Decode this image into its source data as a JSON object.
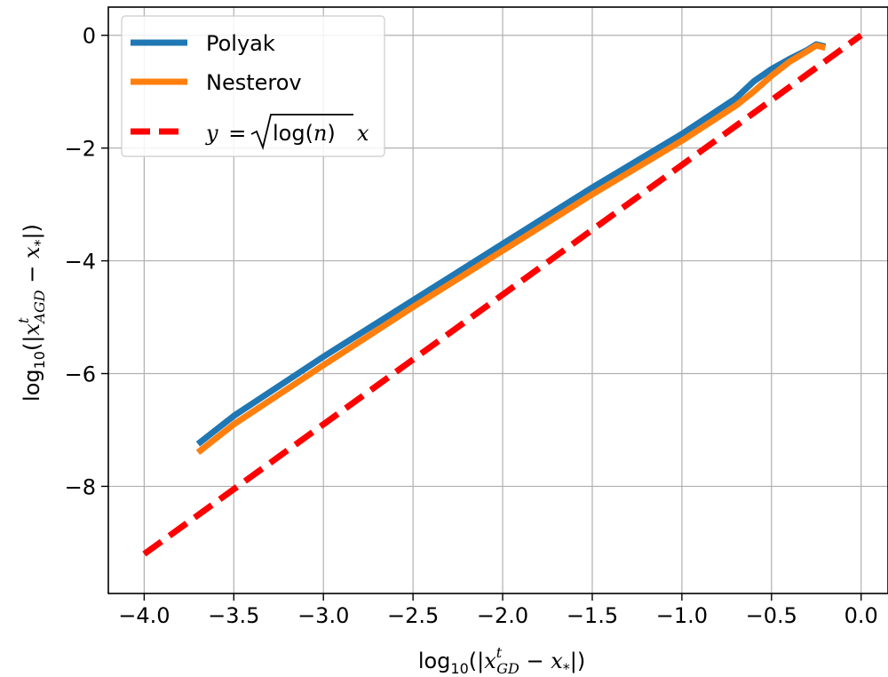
{
  "chart_data": {
    "type": "line",
    "xlabel": "log10(|x^t_GD − x*|)",
    "ylabel": "log10(|x^t_AGD − x*|)",
    "xlim": [
      -4.2,
      0.15
    ],
    "ylim": [
      -9.9,
      0.5
    ],
    "xticks": [
      -4.0,
      -3.5,
      -3.0,
      -2.5,
      -2.0,
      -1.5,
      -1.0,
      -0.5,
      0.0
    ],
    "yticks": [
      0,
      -2,
      -4,
      -6,
      -8
    ],
    "xtick_labels": [
      "−4.0",
      "−3.5",
      "−3.0",
      "−2.5",
      "−2.0",
      "−1.5",
      "−1.0",
      "−0.5",
      "0.0"
    ],
    "ytick_labels": [
      "0",
      "−2",
      "−4",
      "−6",
      "−8"
    ],
    "grid": true,
    "legend_position": "top-left",
    "series": [
      {
        "name": "Polyak",
        "color": "#1f77b4",
        "style": "solid",
        "x": [
          -3.7,
          -3.5,
          -3.0,
          -2.5,
          -2.0,
          -1.5,
          -1.0,
          -0.7,
          -0.6,
          -0.5,
          -0.4,
          -0.3,
          -0.25,
          -0.2
        ],
        "y": [
          -7.25,
          -6.75,
          -5.7,
          -4.7,
          -3.7,
          -2.7,
          -1.75,
          -1.12,
          -0.82,
          -0.6,
          -0.42,
          -0.26,
          -0.16,
          -0.2
        ]
      },
      {
        "name": "Nesterov",
        "color": "#ff7f0e",
        "style": "solid",
        "x": [
          -3.7,
          -3.5,
          -3.0,
          -2.5,
          -2.0,
          -1.5,
          -1.0,
          -0.7,
          -0.6,
          -0.5,
          -0.4,
          -0.3,
          -0.25,
          -0.2
        ],
        "y": [
          -7.4,
          -6.9,
          -5.85,
          -4.82,
          -3.82,
          -2.82,
          -1.87,
          -1.25,
          -1.0,
          -0.72,
          -0.47,
          -0.28,
          -0.18,
          -0.22
        ]
      },
      {
        "name": "y = √log(n) x",
        "color": "#ff0000",
        "style": "dashed",
        "x": [
          -4.0,
          0.0
        ],
        "y": [
          -9.2,
          0.0
        ]
      }
    ],
    "legend": {
      "polyak_label": "Polyak",
      "nesterov_label": "Nesterov",
      "line_label_y": "y",
      "line_label_eq": "=",
      "line_label_log": "log(",
      "line_label_n": "n",
      "line_label_close": ")",
      "line_label_x": "x"
    },
    "axis_text": {
      "xlabel_log": "log",
      "xlabel_sub": "10",
      "xlabel_open": "(|",
      "xlabel_var": "x",
      "xlabel_sup": "t",
      "xlabel_varsub": "GD",
      "xlabel_minus": " − ",
      "xlabel_xstar": "x",
      "xlabel_star": "*",
      "xlabel_close": "|)",
      "ylabel_log": "log",
      "ylabel_sub": "10",
      "ylabel_open": "(|",
      "ylabel_var": "x",
      "ylabel_sup": "t",
      "ylabel_varsub": "AGD",
      "ylabel_minus": " − ",
      "ylabel_xstar": "x",
      "ylabel_star": "*",
      "ylabel_close": "|)"
    }
  }
}
